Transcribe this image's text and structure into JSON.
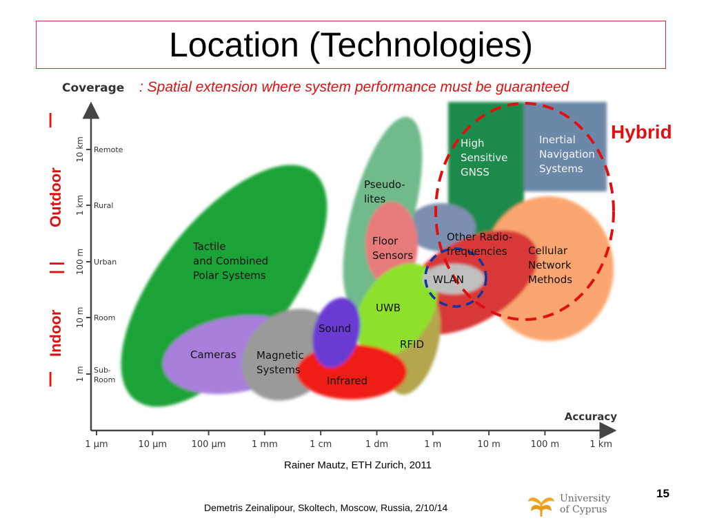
{
  "title": "Location (Technologies)",
  "coverage_label": "Coverage",
  "subtitle": ": Spatial extension where system performance must be guaranteed",
  "labels": {
    "outdoor": "Outdoor",
    "indoor": "Indoor",
    "hybrid": "Hybrid",
    "bracket_top": "|",
    "bracket_mid": "| |",
    "bracket_bot": "|"
  },
  "axes": {
    "x_title": "Accuracy",
    "x_ticks": [
      "1 µm",
      "10 µm",
      "100 µm",
      "1 mm",
      "1 cm",
      "1 dm",
      "1 m",
      "10 m",
      "100 m",
      "1 km"
    ],
    "y_ticks": [
      {
        "scale": "10 km",
        "name": "Remote"
      },
      {
        "scale": "1 km",
        "name": "Rural"
      },
      {
        "scale": "100 m",
        "name": "Urban"
      },
      {
        "scale": "10 m",
        "name": "Room"
      },
      {
        "scale": "1 m",
        "name": "Sub-",
        "name2": "Room"
      }
    ]
  },
  "technologies": {
    "tactile": [
      "Tactile",
      "and Combined",
      "Polar Systems"
    ],
    "cameras": [
      "Cameras"
    ],
    "magnetic": [
      "Magnetic",
      "Systems"
    ],
    "sound": [
      "Sound"
    ],
    "infrared": [
      "Infrared"
    ],
    "pseudolites": [
      "Pseudo-",
      "lites"
    ],
    "floor": [
      "Floor",
      "Sensors"
    ],
    "uwb": [
      "UWB"
    ],
    "rfid": [
      "RFID"
    ],
    "wlan": [
      "WLAN"
    ],
    "radio": [
      "Other Radio-",
      "frequencies"
    ],
    "gnss": [
      "High",
      "Sensitive",
      "GNSS"
    ],
    "inertial": [
      "Inertial",
      "Navigation",
      "Systems"
    ],
    "cellular": [
      "Cellular",
      "Network",
      "Methods"
    ]
  },
  "colors": {
    "tactile": "#1aa339",
    "cameras": "#a97fdc",
    "magnetic": "#9a9a9a",
    "sound": "#6a3ad3",
    "infrared": "#f01a12",
    "pseudolites": "#6fba8b",
    "floor": "#e77a7a",
    "uwb": "#8de12a",
    "rfid": "#b4a64e",
    "wlan": "#bfbfbf",
    "radio": "#d83838",
    "gnss": "#1e8a4c",
    "inertial": "#6c88a9",
    "cellular": "#fba670",
    "steelblue": "#7b8fb0",
    "hybrid_ellipse": "#e01010",
    "wlan_ellipse": "#1434a0",
    "accent": "#e01010"
  },
  "credit": "Rainer Mautz, ETH Zurich, 2011",
  "footer": "Demetris Zeinalipour, Skoltech, Moscow, Russia, 2/10/14",
  "page_number": "15",
  "logo": {
    "line1": "University",
    "line2": "of Cyprus"
  }
}
